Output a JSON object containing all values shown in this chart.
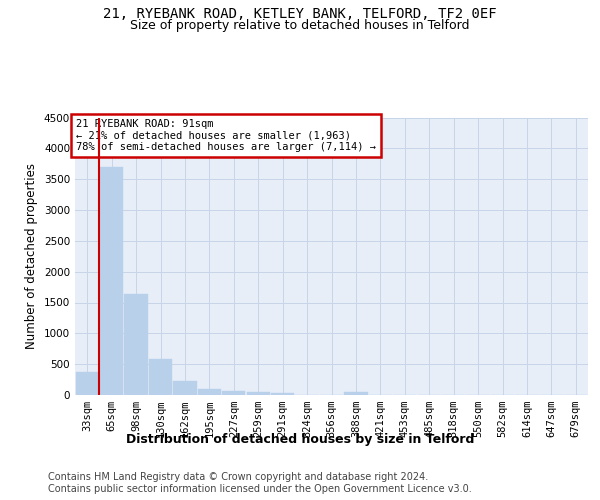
{
  "title_line1": "21, RYEBANK ROAD, KETLEY BANK, TELFORD, TF2 0EF",
  "title_line2": "Size of property relative to detached houses in Telford",
  "xlabel": "Distribution of detached houses by size in Telford",
  "ylabel": "Number of detached properties",
  "footnote_line1": "Contains HM Land Registry data © Crown copyright and database right 2024.",
  "footnote_line2": "Contains public sector information licensed under the Open Government Licence v3.0.",
  "bin_labels": [
    "33sqm",
    "65sqm",
    "98sqm",
    "130sqm",
    "162sqm",
    "195sqm",
    "227sqm",
    "259sqm",
    "291sqm",
    "324sqm",
    "356sqm",
    "388sqm",
    "421sqm",
    "453sqm",
    "485sqm",
    "518sqm",
    "550sqm",
    "582sqm",
    "614sqm",
    "647sqm",
    "679sqm"
  ],
  "bar_values": [
    380,
    3700,
    1640,
    590,
    230,
    100,
    60,
    55,
    40,
    0,
    0,
    50,
    0,
    0,
    0,
    0,
    0,
    0,
    0,
    0,
    0
  ],
  "bar_color": "#b8d0ea",
  "bar_edgecolor": "#b8d0ea",
  "grid_color": "#c8d4e8",
  "annotation_text": "21 RYEBANK ROAD: 91sqm\n← 21% of detached houses are smaller (1,963)\n78% of semi-detached houses are larger (7,114) →",
  "vline_color": "#cc0000",
  "annotation_box_color": "#cc0000",
  "ylim": [
    0,
    4500
  ],
  "yticks": [
    0,
    500,
    1000,
    1500,
    2000,
    2500,
    3000,
    3500,
    4000,
    4500
  ],
  "bg_color": "#e8eef8",
  "title1_fontsize": 10,
  "title2_fontsize": 9,
  "label_fontsize": 8.5,
  "tick_fontsize": 7.5,
  "annot_fontsize": 7.5,
  "footnote_fontsize": 7
}
